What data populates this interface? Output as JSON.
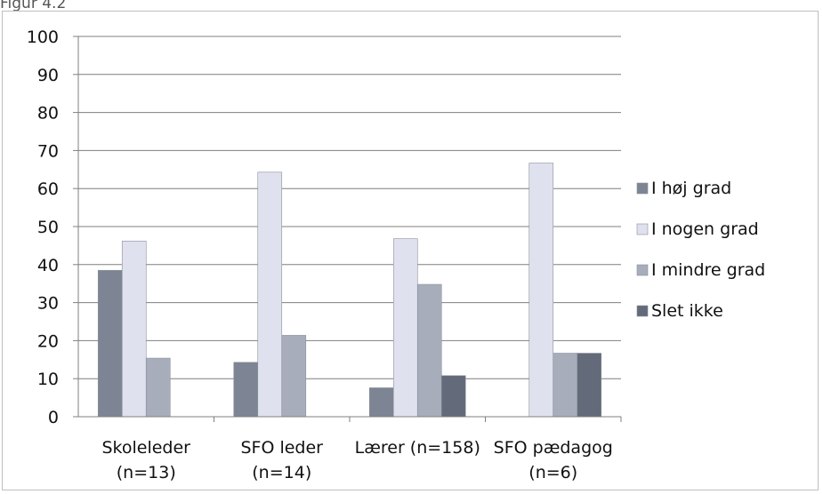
{
  "figure_label": "Figur 4.2",
  "chart_data": {
    "type": "bar",
    "categories": [
      [
        "Skoleleder",
        "(n=13)"
      ],
      [
        "SFO leder",
        "(n=14)"
      ],
      [
        "Lærer (n=158)"
      ],
      [
        "SFO pædagog",
        "(n=6)"
      ]
    ],
    "series": [
      {
        "name": "I høj grad",
        "values": [
          38.5,
          14.3,
          7.6,
          0
        ],
        "color": "#7d8594"
      },
      {
        "name": "I nogen grad",
        "values": [
          46.2,
          64.3,
          46.8,
          66.7
        ],
        "color": "#dfe1ee"
      },
      {
        "name": "I mindre grad",
        "values": [
          15.4,
          21.4,
          34.8,
          16.7
        ],
        "color": "#a7adbb"
      },
      {
        "name": "Slet ikke",
        "values": [
          0,
          0,
          10.8,
          16.7
        ],
        "color": "#636a79"
      }
    ],
    "ylim": [
      0,
      100
    ],
    "yticks": [
      0,
      10,
      20,
      30,
      40,
      50,
      60,
      70,
      80,
      90,
      100
    ],
    "grid": true,
    "legend": "right"
  }
}
